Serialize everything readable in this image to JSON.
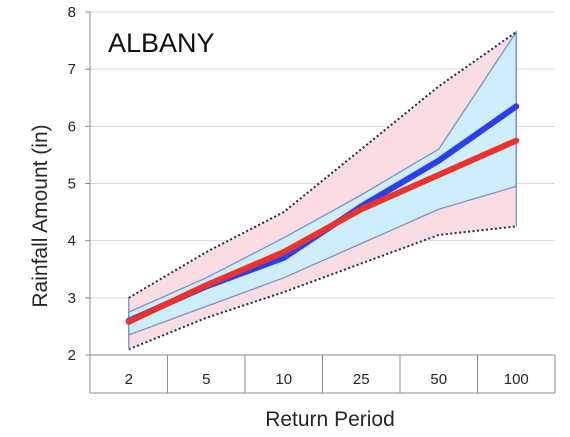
{
  "chart_data": {
    "type": "line",
    "title": "ALBANY",
    "xlabel": "Return Period",
    "ylabel": "Rainfall Amount (in)",
    "categories": [
      "2",
      "5",
      "10",
      "25",
      "50",
      "100"
    ],
    "ylim": [
      2,
      8
    ],
    "yticks": [
      2,
      3,
      4,
      5,
      6,
      7,
      8
    ],
    "grid": true,
    "series": [
      {
        "values": [
          2.6,
          3.2,
          3.7,
          4.6,
          5.4,
          6.35
        ],
        "color": "#2a3ff0"
      },
      {
        "values": [
          2.58,
          3.22,
          3.8,
          4.55,
          5.15,
          5.75
        ],
        "color": "#f0302a"
      }
    ],
    "bands": [
      {
        "upper": [
          2.75,
          3.35,
          4.05,
          4.8,
          5.6,
          7.65
        ],
        "lower": [
          2.35,
          2.85,
          3.35,
          3.95,
          4.55,
          4.95
        ],
        "fill": "#cdeefa",
        "edge": "#7c8fcf"
      },
      {
        "upper": [
          3.0,
          3.8,
          4.5,
          5.6,
          6.7,
          7.65
        ],
        "lower": [
          2.1,
          2.65,
          3.1,
          3.6,
          4.1,
          4.25
        ],
        "fill": "#f9dde2",
        "dotted": "#1c2a4a"
      }
    ]
  }
}
